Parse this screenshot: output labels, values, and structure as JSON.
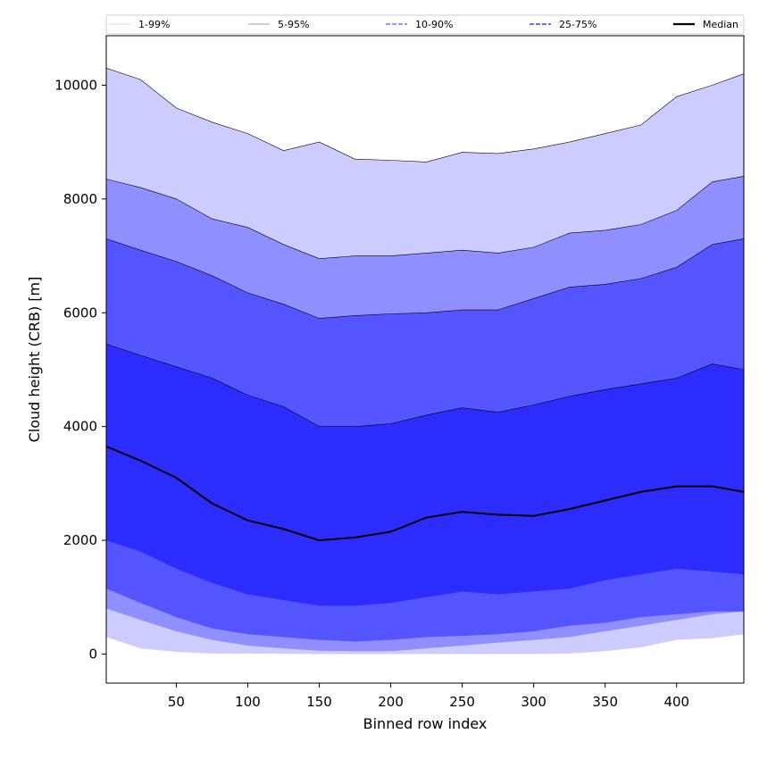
{
  "chart_data": {
    "type": "area",
    "xlabel": "Binned row index",
    "ylabel": "Cloud height (CRB) [m]",
    "xlim": [
      1,
      447
    ],
    "ylim": [
      -510,
      10870
    ],
    "xticks": [
      50,
      100,
      150,
      200,
      250,
      300,
      350,
      400
    ],
    "yticks": [
      0,
      2000,
      4000,
      6000,
      8000,
      10000
    ],
    "grid": false,
    "legend_position": "top",
    "legend": [
      {
        "label": "1-99%",
        "style": "thin",
        "color": "#d9d9f2"
      },
      {
        "label": "5-95%",
        "style": "thin",
        "color": "#9a9ad6"
      },
      {
        "label": "10-90%",
        "style": "dashed",
        "color": "#7a7af0"
      },
      {
        "label": "25-75%",
        "style": "dashed",
        "color": "#4444dd"
      },
      {
        "label": "Median",
        "style": "solid",
        "color": "#000000"
      }
    ],
    "band_colors": {
      "1-99%": "#ccccff",
      "5-95%": "#8f8fff",
      "10-90%": "#5555ff",
      "25-75%": "#2c2cff"
    },
    "x": [
      1,
      25,
      50,
      75,
      100,
      125,
      150,
      175,
      200,
      225,
      250,
      275,
      300,
      325,
      350,
      375,
      400,
      425,
      447
    ],
    "series": [
      {
        "name": "1-99%",
        "lower": [
          300,
          100,
          40,
          10,
          10,
          5,
          0,
          0,
          0,
          0,
          0,
          0,
          0,
          10,
          50,
          120,
          250,
          280,
          350
        ],
        "upper": [
          10300,
          10100,
          9600,
          9350,
          9150,
          8850,
          9000,
          8700,
          8680,
          8650,
          8820,
          8800,
          8880,
          9000,
          9150,
          9300,
          9800,
          10000,
          10200
        ]
      },
      {
        "name": "5-95%",
        "lower": [
          800,
          600,
          400,
          250,
          150,
          100,
          60,
          50,
          50,
          100,
          150,
          200,
          250,
          300,
          400,
          500,
          600,
          700,
          750
        ],
        "upper": [
          8350,
          8200,
          8000,
          7650,
          7500,
          7200,
          6950,
          7000,
          7000,
          7050,
          7100,
          7050,
          7150,
          7400,
          7450,
          7550,
          7800,
          8300,
          8400
        ]
      },
      {
        "name": "10-90%",
        "lower": [
          1150,
          900,
          650,
          450,
          350,
          300,
          250,
          220,
          250,
          300,
          320,
          350,
          400,
          500,
          550,
          650,
          700,
          750,
          750
        ],
        "upper": [
          7300,
          7100,
          6900,
          6650,
          6350,
          6150,
          5900,
          5950,
          5980,
          6000,
          6050,
          6050,
          6250,
          6450,
          6500,
          6600,
          6800,
          7200,
          7300
        ]
      },
      {
        "name": "25-75%",
        "lower": [
          2000,
          1800,
          1500,
          1250,
          1050,
          950,
          850,
          850,
          900,
          1000,
          1100,
          1050,
          1100,
          1150,
          1300,
          1400,
          1500,
          1450,
          1400
        ],
        "upper": [
          5450,
          5250,
          5050,
          4850,
          4550,
          4350,
          4000,
          4000,
          4050,
          4200,
          4330,
          4250,
          4380,
          4530,
          4650,
          4750,
          4850,
          5100,
          5000
        ]
      },
      {
        "name": "Median",
        "values": [
          3650,
          3400,
          3100,
          2650,
          2350,
          2200,
          2000,
          2050,
          2150,
          2400,
          2500,
          2450,
          2430,
          2550,
          2700,
          2850,
          2950,
          2950,
          2850
        ]
      }
    ]
  }
}
